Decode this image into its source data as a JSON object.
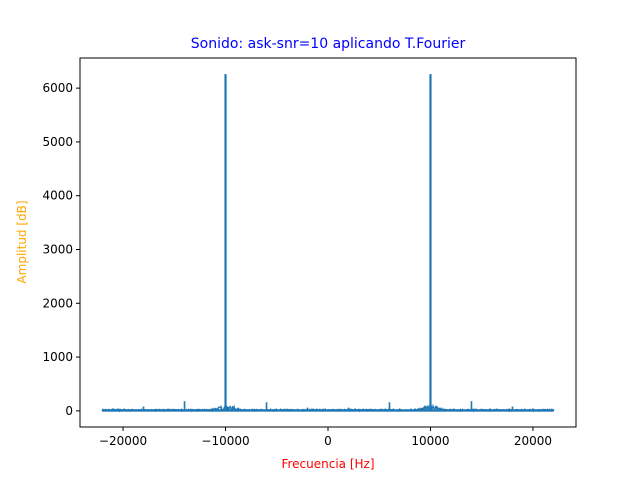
{
  "chart_data": {
    "type": "line",
    "title": "Sonido: ask-snr=10 aplicando T.Fourier",
    "xlabel": "Frecuencia [Hz]",
    "ylabel": "Amplitud [dB]",
    "xlim": [
      -24200,
      24200
    ],
    "ylim": [
      -300,
      6560
    ],
    "xticks": [
      -20000,
      -10000,
      0,
      10000,
      20000
    ],
    "yticks": [
      0,
      1000,
      2000,
      3000,
      4000,
      5000,
      6000
    ],
    "grid": false,
    "series": [
      {
        "color": "#1f77b4",
        "x_range": [
          -22050,
          22050
        ],
        "noise_floor": 15,
        "peaks": [
          {
            "x": -10000,
            "y": 6260
          },
          {
            "x": 10000,
            "y": 6260
          },
          {
            "x": -14000,
            "y": 180
          },
          {
            "x": 14000,
            "y": 180
          },
          {
            "x": -6000,
            "y": 160
          },
          {
            "x": 6000,
            "y": 160
          },
          {
            "x": -18000,
            "y": 80
          },
          {
            "x": 18000,
            "y": 80
          },
          {
            "x": -2000,
            "y": 60
          },
          {
            "x": 2000,
            "y": 60
          }
        ]
      }
    ],
    "colors": {
      "title": "#0000ff",
      "xlabel": "#ff0000",
      "ylabel": "#ffa500"
    }
  }
}
